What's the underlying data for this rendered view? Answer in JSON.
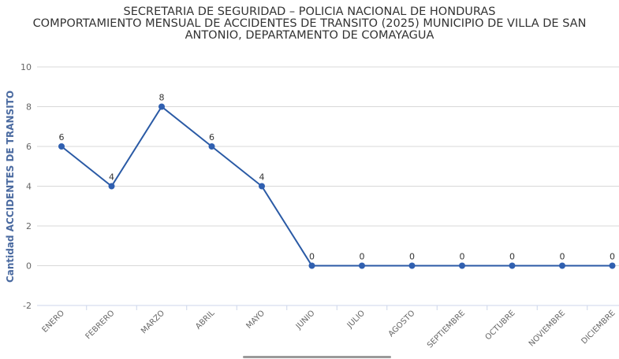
{
  "chart_data": {
    "type": "line",
    "title": "SECRETARIA DE SEGURIDAD – POLICIA NACIONAL DE HONDURAS",
    "subtitle_lines": [
      "COMPORTAMIENTO MENSUAL DE ACCIDENTES DE TRANSITO (2025) MUNICIPIO DE VILLA DE SAN",
      "ANTONIO, DEPARTAMENTO DE COMAYAGUA"
    ],
    "ylabel": "Cantidad ACCIDENTES DE TRANSITO",
    "xlabel": "",
    "ylim": [
      -2,
      10
    ],
    "yticks": [
      -2,
      0,
      2,
      4,
      6,
      8,
      10
    ],
    "categories": [
      "ENERO",
      "FEBRERO",
      "MARZO",
      "ABRIL",
      "MAYO",
      "JUNIO",
      "JULIO",
      "AGOSTO",
      "SEPTIEMBRE",
      "OCTUBRE",
      "NOVIEMBRE",
      "DICIEMBRE"
    ],
    "series": [
      {
        "values": [
          6,
          4,
          8,
          6,
          4,
          0,
          0,
          0,
          0,
          0,
          0,
          0
        ]
      }
    ],
    "grid": true,
    "legend": "none",
    "colors": {
      "line": "#2a5aa5",
      "marker": "#2f5fb0",
      "grid": "#d8d8d8",
      "axis": "#ccd6eb"
    }
  }
}
